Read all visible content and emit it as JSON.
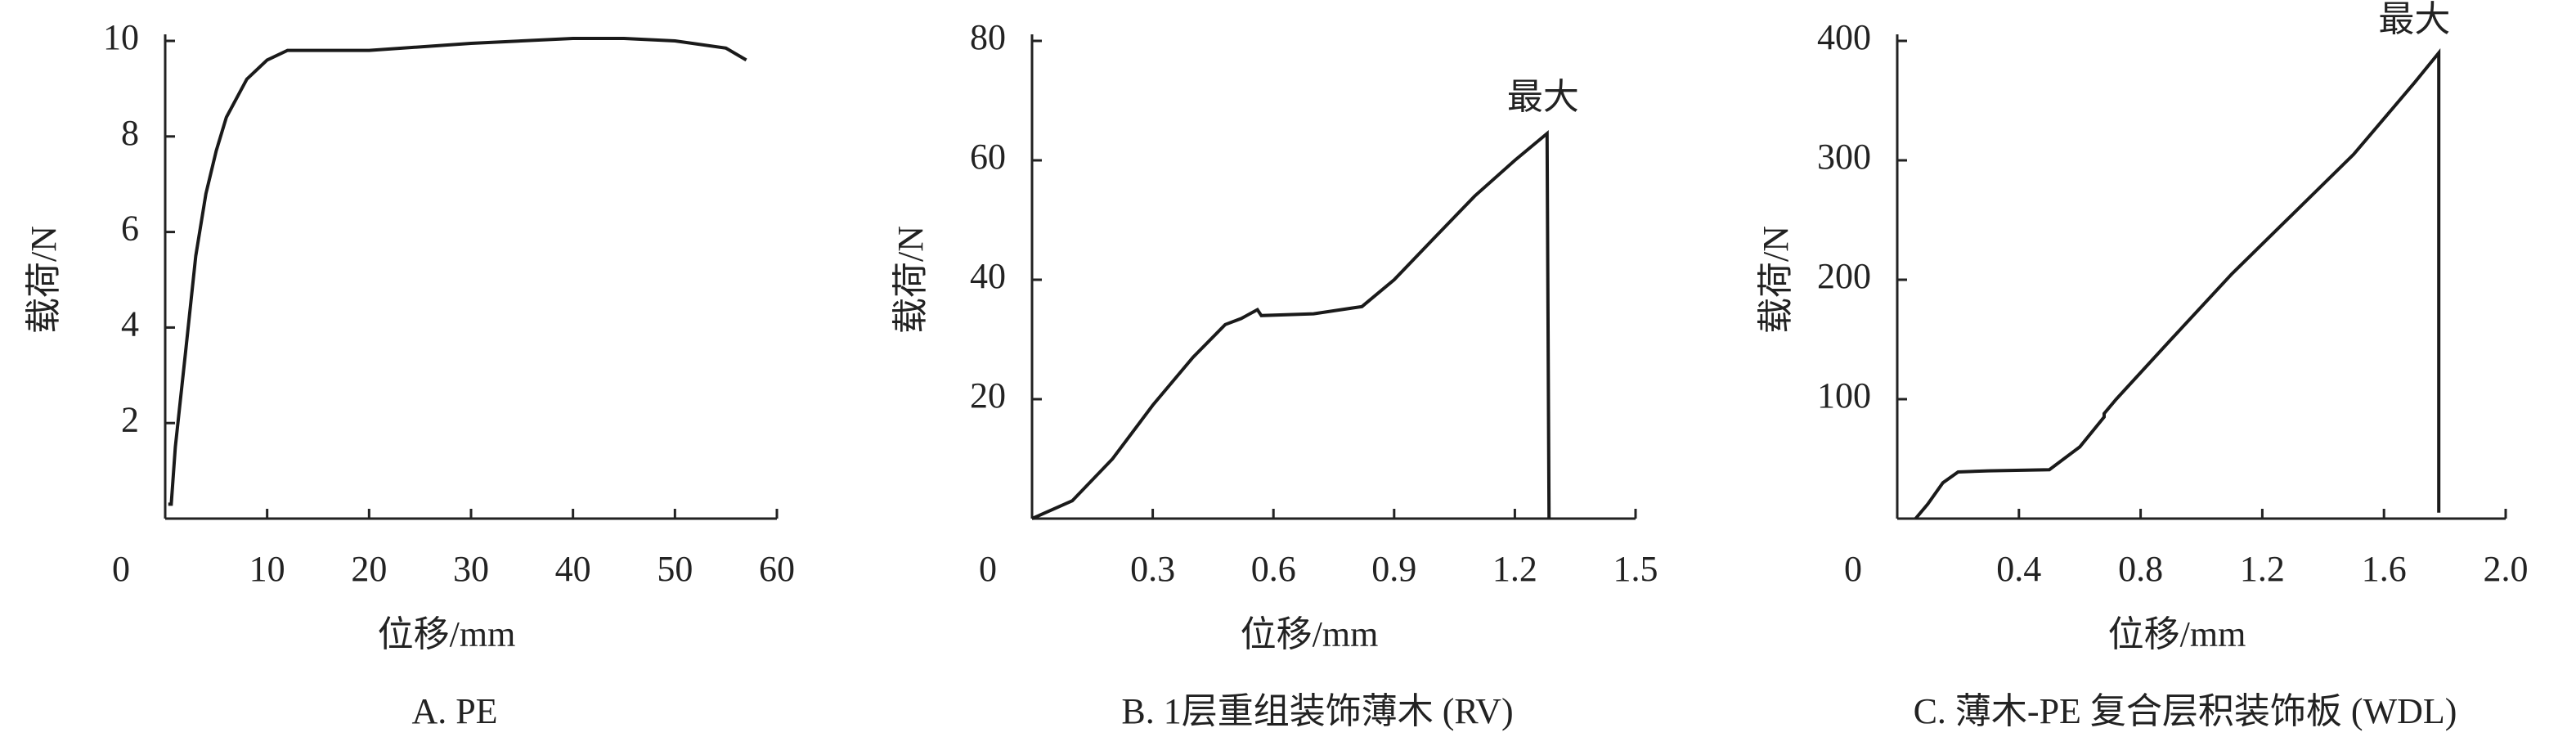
{
  "chart_data": [
    {
      "type": "line",
      "caption": "A. PE",
      "xlabel": "位移/mm",
      "ylabel": "载荷/N",
      "xlim": [
        0,
        60
      ],
      "ylim": [
        0,
        10
      ],
      "xticks": [
        0,
        10,
        20,
        30,
        40,
        50,
        60
      ],
      "yticks": [
        2,
        4,
        6,
        8,
        10
      ],
      "color": "#1a1a1a",
      "x": [
        0.3,
        0.6,
        1,
        2,
        3,
        4,
        5,
        6,
        8,
        10,
        12,
        20,
        30,
        40,
        45,
        50,
        55,
        57
      ],
      "values": [
        0.3,
        0.3,
        1.5,
        3.5,
        5.5,
        6.8,
        7.7,
        8.4,
        9.2,
        9.6,
        9.8,
        9.8,
        9.95,
        10.05,
        10.05,
        10.0,
        9.85,
        9.6
      ]
    },
    {
      "type": "line",
      "caption": "B. 1层重组装饰薄木 (RV)",
      "xlabel": "位移/mm",
      "ylabel": "载荷/N",
      "xlim": [
        0,
        1.5
      ],
      "ylim": [
        0,
        80
      ],
      "xticks": [
        0,
        0.3,
        0.6,
        0.9,
        1.2,
        1.5
      ],
      "yticks": [
        20,
        40,
        60,
        80
      ],
      "color": "#1a1a1a",
      "annotation": {
        "text": "最大",
        "x": 1.27,
        "y": 70
      },
      "x": [
        0,
        0.1,
        0.2,
        0.3,
        0.4,
        0.48,
        0.52,
        0.56,
        0.57,
        0.7,
        0.82,
        0.9,
        1.0,
        1.1,
        1.2,
        1.28,
        1.285
      ],
      "values": [
        0,
        3,
        10,
        19,
        27,
        32.5,
        33.5,
        35,
        34,
        34.3,
        35.5,
        40,
        47,
        54,
        60,
        64.5,
        0
      ]
    },
    {
      "type": "line",
      "caption": "C. 薄木-PE 复合层积装饰板 (WDL)",
      "xlabel": "位移/mm",
      "ylabel": "载荷/N",
      "xlim": [
        0,
        2.0
      ],
      "ylim": [
        0,
        400
      ],
      "xticks": [
        0,
        0.4,
        0.8,
        1.2,
        1.6,
        {
          "value": 2.0,
          "label": "2.0"
        }
      ],
      "yticks": [
        100,
        200,
        300,
        400
      ],
      "color": "#1a1a1a",
      "annotation": {
        "text": "最大",
        "x": 1.7,
        "y": 415
      },
      "x": [
        0.06,
        0.1,
        0.15,
        0.2,
        0.3,
        0.5,
        0.6,
        0.68,
        0.68,
        0.72,
        0.9,
        1.1,
        1.3,
        1.5,
        1.7,
        1.78,
        1.78
      ],
      "values": [
        0,
        12,
        30,
        39,
        40,
        41,
        60,
        85,
        88,
        100,
        150,
        205,
        255,
        305,
        365,
        390,
        5
      ]
    }
  ]
}
